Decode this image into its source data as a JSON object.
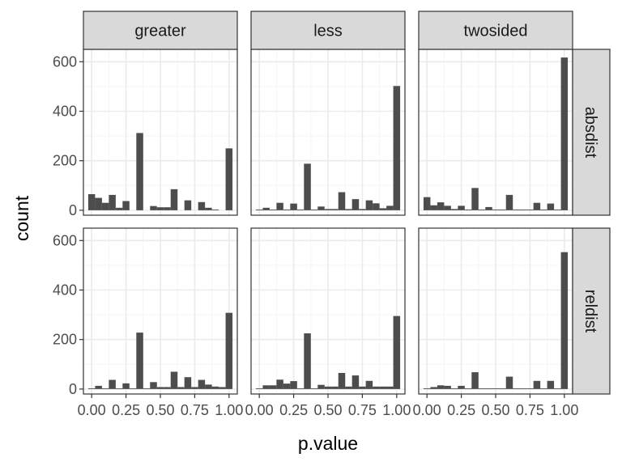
{
  "chart_data": {
    "type": "bar",
    "xlabel": "p.value",
    "ylabel": "count",
    "xlim": [
      -0.06,
      1.06
    ],
    "ylim": [
      -20,
      650
    ],
    "x_ticks": [
      0.0,
      0.25,
      0.5,
      0.75,
      1.0
    ],
    "x_tick_labels": [
      "0.00",
      "0.25",
      "0.50",
      "0.75",
      "1.00"
    ],
    "y_ticks": [
      0,
      200,
      400,
      600
    ],
    "y_tick_labels": [
      "0",
      "200",
      "400",
      "600"
    ],
    "bin_width": 0.05,
    "bin_centers": [
      0.0,
      0.05,
      0.1,
      0.15,
      0.2,
      0.25,
      0.3,
      0.35,
      0.4,
      0.45,
      0.5,
      0.55,
      0.6,
      0.65,
      0.7,
      0.75,
      0.8,
      0.85,
      0.9,
      0.95,
      1.0
    ],
    "column_facets": [
      "greater",
      "less",
      "twosided"
    ],
    "row_facets": [
      "absdist",
      "reldist"
    ],
    "grid": true,
    "panels": [
      {
        "row": "absdist",
        "col": "greater",
        "values": [
          65,
          50,
          30,
          62,
          10,
          37,
          0,
          312,
          0,
          17,
          12,
          12,
          85,
          0,
          40,
          0,
          33,
          10,
          3,
          0,
          250
        ]
      },
      {
        "row": "absdist",
        "col": "less",
        "values": [
          3,
          10,
          3,
          30,
          3,
          27,
          3,
          188,
          3,
          15,
          5,
          5,
          73,
          5,
          45,
          5,
          40,
          28,
          8,
          18,
          502
        ]
      },
      {
        "row": "absdist",
        "col": "twosided",
        "values": [
          53,
          20,
          32,
          18,
          5,
          18,
          3,
          90,
          3,
          13,
          3,
          3,
          62,
          3,
          3,
          3,
          30,
          3,
          27,
          3,
          617
        ]
      },
      {
        "row": "reldist",
        "col": "greater",
        "values": [
          3,
          13,
          3,
          37,
          3,
          23,
          3,
          228,
          3,
          28,
          8,
          8,
          70,
          8,
          48,
          8,
          37,
          18,
          10,
          8,
          308
        ]
      },
      {
        "row": "reldist",
        "col": "less",
        "values": [
          3,
          15,
          15,
          38,
          22,
          32,
          3,
          225,
          3,
          17,
          10,
          10,
          65,
          10,
          55,
          10,
          33,
          10,
          10,
          10,
          295
        ]
      },
      {
        "row": "reldist",
        "col": "twosided",
        "values": [
          3,
          8,
          15,
          13,
          3,
          13,
          3,
          68,
          3,
          3,
          3,
          3,
          50,
          3,
          3,
          3,
          33,
          3,
          33,
          3,
          553
        ]
      }
    ]
  },
  "colors": {
    "bar": "#4d4d4d",
    "strip_fill": "#d9d9d9",
    "strip_border": "#333333",
    "panel_border": "#333333",
    "grid_major": "#ebebeb",
    "grid_minor": "#f5f5f5",
    "tick_text": "#4d4d4d"
  }
}
